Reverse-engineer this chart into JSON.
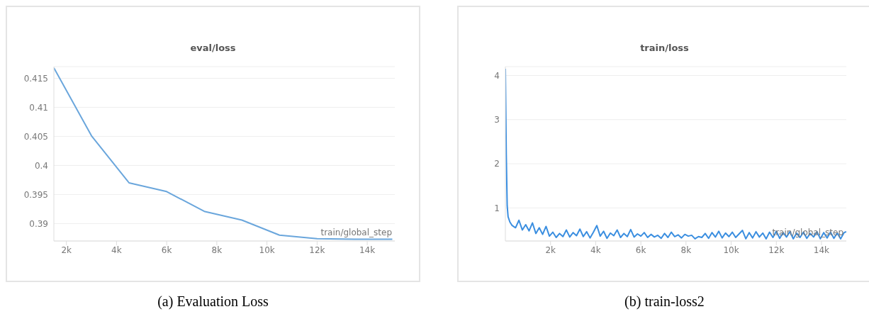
{
  "chart_data": [
    {
      "type": "line",
      "title": "eval/loss",
      "xlabel": "train/global_step",
      "color": "#6aa6dc",
      "grid": "y",
      "x": [
        1500,
        3000,
        4500,
        6000,
        7500,
        9000,
        10500,
        12000,
        13500,
        15000
      ],
      "values": [
        0.4168,
        0.4051,
        0.397,
        0.3955,
        0.3921,
        0.3906,
        0.388,
        0.3874,
        0.3873,
        0.3873
      ],
      "xlim": [
        1500,
        15100
      ],
      "xticks": [
        {
          "value": 2000,
          "label": "2k"
        },
        {
          "value": 4000,
          "label": "4k"
        },
        {
          "value": 6000,
          "label": "6k"
        },
        {
          "value": 8000,
          "label": "8k"
        },
        {
          "value": 10000,
          "label": "10k"
        },
        {
          "value": 12000,
          "label": "12k"
        },
        {
          "value": 14000,
          "label": "14k"
        }
      ],
      "ylim": [
        0.387,
        0.417
      ],
      "yticks": [
        0.39,
        0.395,
        0.4,
        0.405,
        0.41,
        0.415
      ],
      "annotations": [
        "(a) Evaluation Loss"
      ]
    },
    {
      "type": "line",
      "title": "train/loss",
      "xlabel": "train/global_step",
      "color": "#3a8ee0",
      "grid": "y",
      "x": [
        0,
        40,
        80,
        120,
        200,
        300,
        450,
        600,
        750,
        900,
        1050,
        1200,
        1350,
        1500,
        1650,
        1800,
        1950,
        2100,
        2250,
        2400,
        2550,
        2700,
        2850,
        3000,
        3150,
        3300,
        3450,
        3600,
        3750,
        3900,
        4050,
        4200,
        4350,
        4500,
        4650,
        4800,
        4950,
        5100,
        5250,
        5400,
        5550,
        5700,
        5850,
        6000,
        6150,
        6300,
        6450,
        6600,
        6750,
        6900,
        7050,
        7200,
        7350,
        7500,
        7650,
        7800,
        7950,
        8100,
        8250,
        8400,
        8550,
        8700,
        8850,
        9000,
        9150,
        9300,
        9450,
        9600,
        9750,
        9900,
        10050,
        10200,
        10350,
        10500,
        10650,
        10800,
        10950,
        11100,
        11250,
        11400,
        11550,
        11700,
        11850,
        12000,
        12150,
        12300,
        12450,
        12600,
        12750,
        12900,
        13050,
        13200,
        13350,
        13500,
        13650,
        13800,
        13950,
        14100,
        14250,
        14400,
        14550,
        14700,
        14850,
        15000,
        15100
      ],
      "values": [
        4.15,
        2.2,
        1.05,
        0.8,
        0.68,
        0.6,
        0.55,
        0.72,
        0.5,
        0.62,
        0.48,
        0.66,
        0.42,
        0.55,
        0.4,
        0.58,
        0.36,
        0.45,
        0.33,
        0.42,
        0.35,
        0.5,
        0.34,
        0.44,
        0.37,
        0.52,
        0.35,
        0.46,
        0.32,
        0.45,
        0.6,
        0.36,
        0.47,
        0.31,
        0.43,
        0.37,
        0.5,
        0.33,
        0.42,
        0.35,
        0.51,
        0.34,
        0.41,
        0.36,
        0.44,
        0.33,
        0.4,
        0.34,
        0.38,
        0.31,
        0.42,
        0.33,
        0.45,
        0.35,
        0.39,
        0.32,
        0.4,
        0.36,
        0.38,
        0.3,
        0.35,
        0.33,
        0.42,
        0.31,
        0.44,
        0.34,
        0.47,
        0.32,
        0.43,
        0.35,
        0.45,
        0.33,
        0.41,
        0.49,
        0.3,
        0.44,
        0.32,
        0.46,
        0.34,
        0.43,
        0.3,
        0.45,
        0.33,
        0.47,
        0.31,
        0.44,
        0.34,
        0.46,
        0.3,
        0.43,
        0.33,
        0.45,
        0.31,
        0.42,
        0.34,
        0.46,
        0.3,
        0.44,
        0.32,
        0.45,
        0.31,
        0.43,
        0.3,
        0.44,
        0.46
      ],
      "xlim": [
        0,
        15100
      ],
      "xticks": [
        {
          "value": 2000,
          "label": "2k"
        },
        {
          "value": 4000,
          "label": "4k"
        },
        {
          "value": 6000,
          "label": "6k"
        },
        {
          "value": 8000,
          "label": "8k"
        },
        {
          "value": 10000,
          "label": "10k"
        },
        {
          "value": 12000,
          "label": "12k"
        },
        {
          "value": 14000,
          "label": "14k"
        }
      ],
      "ylim": [
        0.25,
        4.2
      ],
      "yticks": [
        1,
        2,
        3,
        4
      ],
      "annotations": [
        "(b) train-loss2"
      ]
    }
  ]
}
